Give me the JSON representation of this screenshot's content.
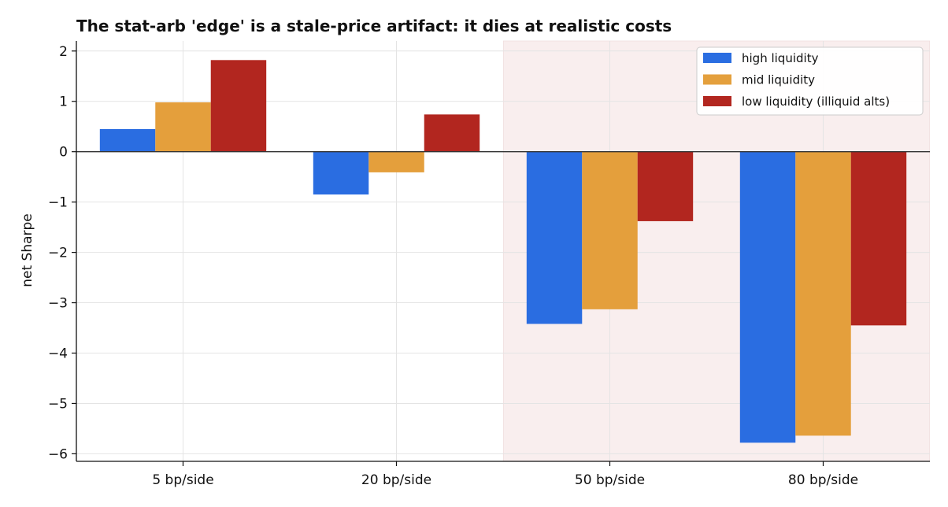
{
  "chart_data": {
    "type": "bar",
    "title": "The stat-arb 'edge' is a stale-price artifact: it dies at realistic costs",
    "xlabel": "",
    "ylabel": "net Sharpe",
    "categories": [
      "5 bp/side",
      "20 bp/side",
      "50 bp/side",
      "80 bp/side"
    ],
    "series": [
      {
        "name": "high liquidity",
        "color": "#2a6de1",
        "values": [
          0.45,
          -0.85,
          -3.42,
          -5.78
        ]
      },
      {
        "name": "mid liquidity",
        "color": "#e49f3c",
        "values": [
          0.98,
          -0.41,
          -3.13,
          -5.64
        ]
      },
      {
        "name": "low liquidity (illiquid alts)",
        "color": "#b2261f",
        "values": [
          1.82,
          0.74,
          -1.38,
          -3.45
        ]
      }
    ],
    "ylim": [
      -6.15,
      2.2
    ],
    "yticks": [
      2,
      1,
      0,
      -1,
      -2,
      -3,
      -4,
      -5,
      -6
    ],
    "ytick_labels": [
      "2",
      "1",
      "0",
      "−1",
      "−2",
      "−3",
      "−4",
      "−5",
      "−6"
    ],
    "shaded_categories": [
      "50 bp/side",
      "80 bp/side"
    ],
    "shade_color": "#f9eeee",
    "grid": true,
    "legend_position": "top-right"
  }
}
